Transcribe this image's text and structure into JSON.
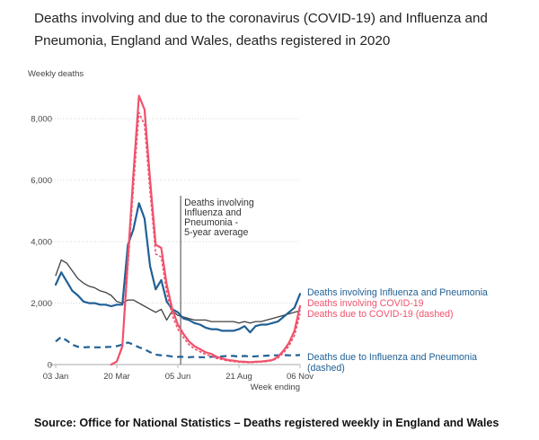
{
  "title": "Deaths involving and due to the coronavirus (COVID-19) and Influenza and Pneumonia, England and Wales, deaths registered in 2020",
  "source": "Source: Office for National Statistics – Deaths registered weekly in England and Wales",
  "colors": {
    "influenza": "#206095",
    "covid": "#f0526c",
    "average": "#414042",
    "grid": "#d9d9d9",
    "axis": "#bbbbbb"
  },
  "chart_data": {
    "type": "line",
    "ylabel": "Weekly deaths",
    "xlabel": "Week ending",
    "ylim": [
      0,
      9000
    ],
    "xlim": [
      1,
      45
    ],
    "yticks": [
      {
        "value": 0,
        "label": "0"
      },
      {
        "value": 2000,
        "label": "2,000"
      },
      {
        "value": 4000,
        "label": "4,000"
      },
      {
        "value": 6000,
        "label": "6,000"
      },
      {
        "value": 8000,
        "label": "8,000"
      }
    ],
    "xticks": [
      {
        "week": 1,
        "label": "03 Jan"
      },
      {
        "week": 12,
        "label": "20 Mar"
      },
      {
        "week": 23,
        "label": "05 Jun"
      },
      {
        "week": 34,
        "label": "21 Aug"
      },
      {
        "week": 45,
        "label": "06 Nov"
      }
    ],
    "series": [
      {
        "name": "Deaths involving Influenza and Pneumonia",
        "legend": "Deaths involving Influenza and Pneumonia",
        "key": "influenza_involving",
        "color": "#206095",
        "dashed": false,
        "width": 2.2,
        "start_week": 1,
        "values": [
          2600,
          3000,
          2700,
          2400,
          2250,
          2050,
          2000,
          2000,
          1950,
          1950,
          1900,
          1950,
          1950,
          3900,
          4400,
          5250,
          4750,
          3200,
          2450,
          2750,
          2050,
          1800,
          1700,
          1500,
          1450,
          1350,
          1300,
          1200,
          1150,
          1150,
          1100,
          1100,
          1100,
          1150,
          1250,
          1050,
          1250,
          1300,
          1300,
          1350,
          1400,
          1550,
          1700,
          1850,
          2300
        ]
      },
      {
        "name": "Deaths involving COVID-19",
        "legend": "Deaths involving COVID-19",
        "key": "covid_involving",
        "color": "#f0526c",
        "dashed": false,
        "width": 2.2,
        "start_week": 11,
        "values": [
          0,
          100,
          600,
          3450,
          6200,
          8750,
          8300,
          6000,
          3900,
          3800,
          2600,
          1800,
          1300,
          1000,
          750,
          600,
          500,
          400,
          350,
          250,
          200,
          150,
          130,
          100,
          90,
          80,
          90,
          100,
          120,
          150,
          250,
          450,
          700,
          1100,
          1900
        ]
      },
      {
        "name": "Deaths due to COVID-19 (dashed)",
        "legend": "Deaths due to COVID-19 (dashed)",
        "key": "covid_due",
        "color": "#f0526c",
        "dashed": true,
        "width": 1.6,
        "start_week": 11,
        "values": [
          0,
          90,
          550,
          3200,
          5750,
          8200,
          7800,
          5600,
          3600,
          3500,
          2350,
          1600,
          1150,
          880,
          650,
          510,
          420,
          330,
          280,
          200,
          160,
          120,
          100,
          80,
          70,
          65,
          75,
          85,
          100,
          130,
          210,
          380,
          600,
          950,
          1650
        ]
      },
      {
        "name": "Deaths involving Influenza and Pneumonia - 5-year average",
        "legend": "",
        "key": "average",
        "color": "#414042",
        "dashed": false,
        "width": 1.3,
        "start_week": 1,
        "values": [
          2900,
          3400,
          3300,
          3050,
          2800,
          2650,
          2550,
          2500,
          2400,
          2350,
          2250,
          2050,
          2000,
          2100,
          2100,
          2000,
          1900,
          1800,
          1700,
          1800,
          1450,
          1750,
          1600,
          1550,
          1500,
          1450,
          1450,
          1450,
          1400,
          1400,
          1400,
          1400,
          1400,
          1350,
          1400,
          1350,
          1400,
          1400,
          1450,
          1500,
          1550,
          1600,
          1650,
          1700,
          1750
        ]
      },
      {
        "name": "Deaths due to Influenza and Pneumonia (dashed)",
        "legend": "Deaths due to Influenza and Pneumonia (dashed)",
        "key": "influenza_due",
        "color": "#206095",
        "dashed": true,
        "width": 2.2,
        "start_week": 1,
        "values": [
          750,
          900,
          780,
          650,
          580,
          560,
          570,
          560,
          560,
          570,
          580,
          600,
          650,
          720,
          650,
          560,
          500,
          400,
          320,
          300,
          290,
          260,
          250,
          250,
          240,
          250,
          240,
          240,
          250,
          260,
          270,
          280,
          280,
          260,
          280,
          260,
          270,
          280,
          290,
          300,
          300,
          310,
          300,
          300,
          310
        ]
      }
    ],
    "annotation": {
      "week": 23.5,
      "lines": [
        "Deaths involving",
        "Influenza and",
        "Pneumonia -",
        "5-year average"
      ]
    }
  }
}
